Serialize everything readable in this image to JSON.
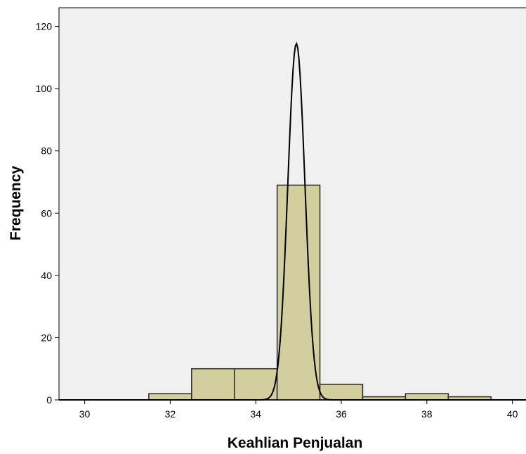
{
  "chart_data": {
    "type": "bar",
    "subtype": "histogram",
    "title": "",
    "xlabel": "Keahlian Penjualan",
    "ylabel": "Frequency",
    "xlim": [
      29.4,
      40.4
    ],
    "ylim": [
      0,
      126
    ],
    "x_ticks": [
      30,
      32,
      34,
      36,
      38,
      40
    ],
    "y_ticks": [
      0,
      20,
      40,
      60,
      80,
      100,
      120
    ],
    "bin_width": 1,
    "bins": [
      {
        "center": 32,
        "value": 2
      },
      {
        "center": 33,
        "value": 10
      },
      {
        "center": 34,
        "value": 10
      },
      {
        "center": 35,
        "value": 69
      },
      {
        "center": 36,
        "value": 5
      },
      {
        "center": 37,
        "value": 1
      },
      {
        "center": 38,
        "value": 2
      },
      {
        "center": 39,
        "value": 1
      }
    ],
    "normal_curve": {
      "mean": 34.95,
      "peak": 114.5,
      "sd": 0.2
    },
    "grid": false,
    "colors": {
      "plot_background": "#f0f0f0",
      "bar_fill": "#d3ce9d",
      "bar_stroke": "#2a2a2a",
      "curve": "#000000"
    }
  }
}
